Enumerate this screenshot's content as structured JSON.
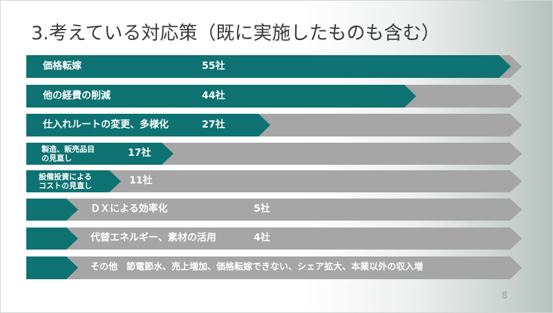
{
  "slide": {
    "title": "3.考えている対応策（既に実施したものも含む）",
    "page_number": "8"
  },
  "colors": {
    "teal": "#0e7272",
    "gray": "#a6a6a6"
  },
  "chart_data": {
    "type": "bar",
    "max_value": 55,
    "items": [
      {
        "label_lines": [
          "価格転嫁"
        ],
        "value": 55,
        "value_label": "55社"
      },
      {
        "label_lines": [
          "他の経費の削減"
        ],
        "value": 44,
        "value_label": "44社"
      },
      {
        "label_lines": [
          "仕入れルートの変更、多様化"
        ],
        "value": 27,
        "value_label": "27社"
      },
      {
        "label_lines": [
          "製造、販売品目",
          "の見直し"
        ],
        "value": 17,
        "value_label": "17社"
      },
      {
        "label_lines": [
          "設備投資による",
          "コストの見直し"
        ],
        "value": 11,
        "value_label": "11社"
      },
      {
        "label_lines": [
          "ＤＸによる効率化"
        ],
        "value": 5,
        "value_label": "5社"
      },
      {
        "label_lines": [
          "代替エネルギー、素材の活用"
        ],
        "value": 4,
        "value_label": "4社"
      },
      {
        "label_lines": [
          "その他　節電節水、売上増加、価格転嫁できない、シェア拡大、本業以外の収入増"
        ],
        "value": null,
        "value_label": ""
      }
    ]
  }
}
